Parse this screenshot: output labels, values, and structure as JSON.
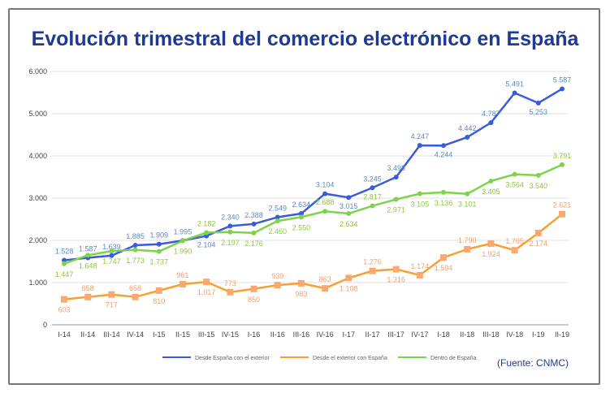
{
  "title": "Evolución trimestral del comercio electrónico en España",
  "source": "(Fuente: CNMC)",
  "chart_data": {
    "type": "line",
    "title": "Evolución trimestral del comercio electrónico en España",
    "xlabel": "",
    "ylabel": "",
    "ylim": [
      0,
      6000
    ],
    "yticks": [
      "0",
      "1.000",
      "2.000",
      "3.000",
      "4.000",
      "5.000",
      "6.000"
    ],
    "grid": true,
    "legend_position": "bottom",
    "categories": [
      "I-14",
      "II-14",
      "III-14",
      "IV-14",
      "I-15",
      "II-15",
      "III-15",
      "IV-15",
      "I-16",
      "II-16",
      "III-16",
      "IV-16",
      "I-17",
      "II-17",
      "III-17",
      "IV-17",
      "I-18",
      "II-18",
      "III-18",
      "IV-18",
      "I-19",
      "II-19"
    ],
    "series": [
      {
        "name": "Desde España con el exterior",
        "color": "#3b5bdb",
        "values": [
          1528,
          1587,
          1639,
          1885,
          1909,
          1995,
          2104,
          2340,
          2388,
          2549,
          2634,
          3104,
          3015,
          3245,
          3498,
          4247,
          4244,
          4442,
          4787,
          5491,
          5253,
          5587
        ]
      },
      {
        "name": "Desde el exterior con España",
        "color": "#f7a030",
        "values": [
          603,
          658,
          717,
          658,
          810,
          961,
          1017,
          773,
          850,
          939,
          983,
          863,
          1108,
          1276,
          1316,
          1174,
          1594,
          1790,
          1924,
          1765,
          2174,
          2621
        ]
      },
      {
        "name": "Dentro de España",
        "color": "#7ed34a",
        "values": [
          1447,
          1648,
          1747,
          1773,
          1737,
          1990,
          2182,
          2197,
          2176,
          2460,
          2550,
          2688,
          2634,
          2817,
          2971,
          3105,
          3136,
          3101,
          3405,
          3564,
          3540,
          3791
        ]
      }
    ]
  }
}
